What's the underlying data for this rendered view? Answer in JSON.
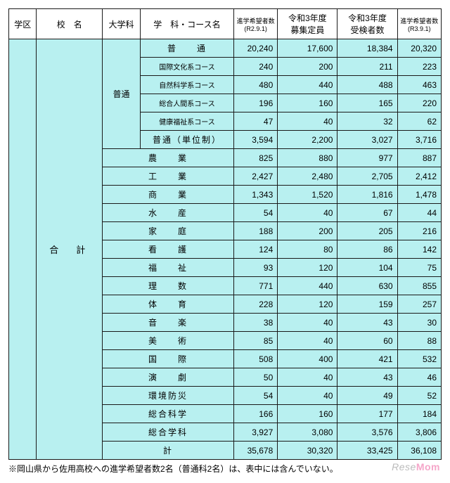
{
  "colors": {
    "cell_bg": "#b8f0f0",
    "border": "#1a1a1a",
    "header_bg": "#ffffff"
  },
  "header": {
    "c1": "学区",
    "c2": "校　名",
    "c3": "大学科",
    "c4": "学　科・コース名",
    "c5a": "進学希望者数",
    "c5b": "(R2.9.1)",
    "c6a": "令和3年度",
    "c6b": "募集定員",
    "c7a": "令和3年度",
    "c7b": "受検者数",
    "c8a": "進学希望者数",
    "c8b": "(R3.9.1)"
  },
  "merge": {
    "gakku": "",
    "kou": "合　計",
    "daigakka": "普通"
  },
  "rows": [
    {
      "name": "普　　通",
      "cls": "",
      "v": [
        "20,240",
        "17,600",
        "18,384",
        "20,320"
      ]
    },
    {
      "name": "国際文化系コース",
      "cls": "small",
      "v": [
        "240",
        "200",
        "211",
        "223"
      ]
    },
    {
      "name": "自然科学系コース",
      "cls": "small",
      "v": [
        "480",
        "440",
        "488",
        "463"
      ]
    },
    {
      "name": "総合人間系コース",
      "cls": "small",
      "v": [
        "196",
        "160",
        "165",
        "220"
      ]
    },
    {
      "name": "健康福祉系コース",
      "cls": "small",
      "v": [
        "47",
        "40",
        "32",
        "62"
      ]
    },
    {
      "name": "普通（単位制）",
      "cls": "",
      "v": [
        "3,594",
        "2,200",
        "3,027",
        "3,716"
      ]
    },
    {
      "name": "農　　業",
      "cls": "",
      "v": [
        "825",
        "880",
        "977",
        "887"
      ]
    },
    {
      "name": "工　　業",
      "cls": "",
      "v": [
        "2,427",
        "2,480",
        "2,705",
        "2,412"
      ]
    },
    {
      "name": "商　　業",
      "cls": "",
      "v": [
        "1,343",
        "1,520",
        "1,816",
        "1,478"
      ]
    },
    {
      "name": "水　　産",
      "cls": "",
      "v": [
        "54",
        "40",
        "67",
        "44"
      ]
    },
    {
      "name": "家　　庭",
      "cls": "",
      "v": [
        "188",
        "200",
        "205",
        "216"
      ]
    },
    {
      "name": "看　　護",
      "cls": "",
      "v": [
        "124",
        "80",
        "86",
        "142"
      ]
    },
    {
      "name": "福　　祉",
      "cls": "",
      "v": [
        "93",
        "120",
        "104",
        "75"
      ]
    },
    {
      "name": "理　　数",
      "cls": "",
      "v": [
        "771",
        "440",
        "630",
        "855"
      ]
    },
    {
      "name": "体　　育",
      "cls": "",
      "v": [
        "228",
        "120",
        "159",
        "257"
      ]
    },
    {
      "name": "音　　楽",
      "cls": "",
      "v": [
        "38",
        "40",
        "43",
        "30"
      ]
    },
    {
      "name": "美　　術",
      "cls": "",
      "v": [
        "85",
        "40",
        "60",
        "88"
      ]
    },
    {
      "name": "国　　際",
      "cls": "",
      "v": [
        "508",
        "400",
        "421",
        "532"
      ]
    },
    {
      "name": "演　　劇",
      "cls": "",
      "v": [
        "50",
        "40",
        "43",
        "46"
      ]
    },
    {
      "name": "環境防災",
      "cls": "",
      "v": [
        "54",
        "40",
        "49",
        "52"
      ]
    },
    {
      "name": "総合科学",
      "cls": "",
      "v": [
        "166",
        "160",
        "177",
        "184"
      ]
    },
    {
      "name": "総合学科",
      "cls": "",
      "v": [
        "3,927",
        "3,080",
        "3,576",
        "3,806"
      ]
    },
    {
      "name": "計",
      "cls": "",
      "v": [
        "35,678",
        "30,320",
        "33,425",
        "36,108"
      ]
    }
  ],
  "footnote": "※岡山県から佐用高校への進学希望者数2名（普通科2名）は、表中には含んでいない。",
  "watermark": {
    "a": "Rese",
    "b": "Mom"
  }
}
